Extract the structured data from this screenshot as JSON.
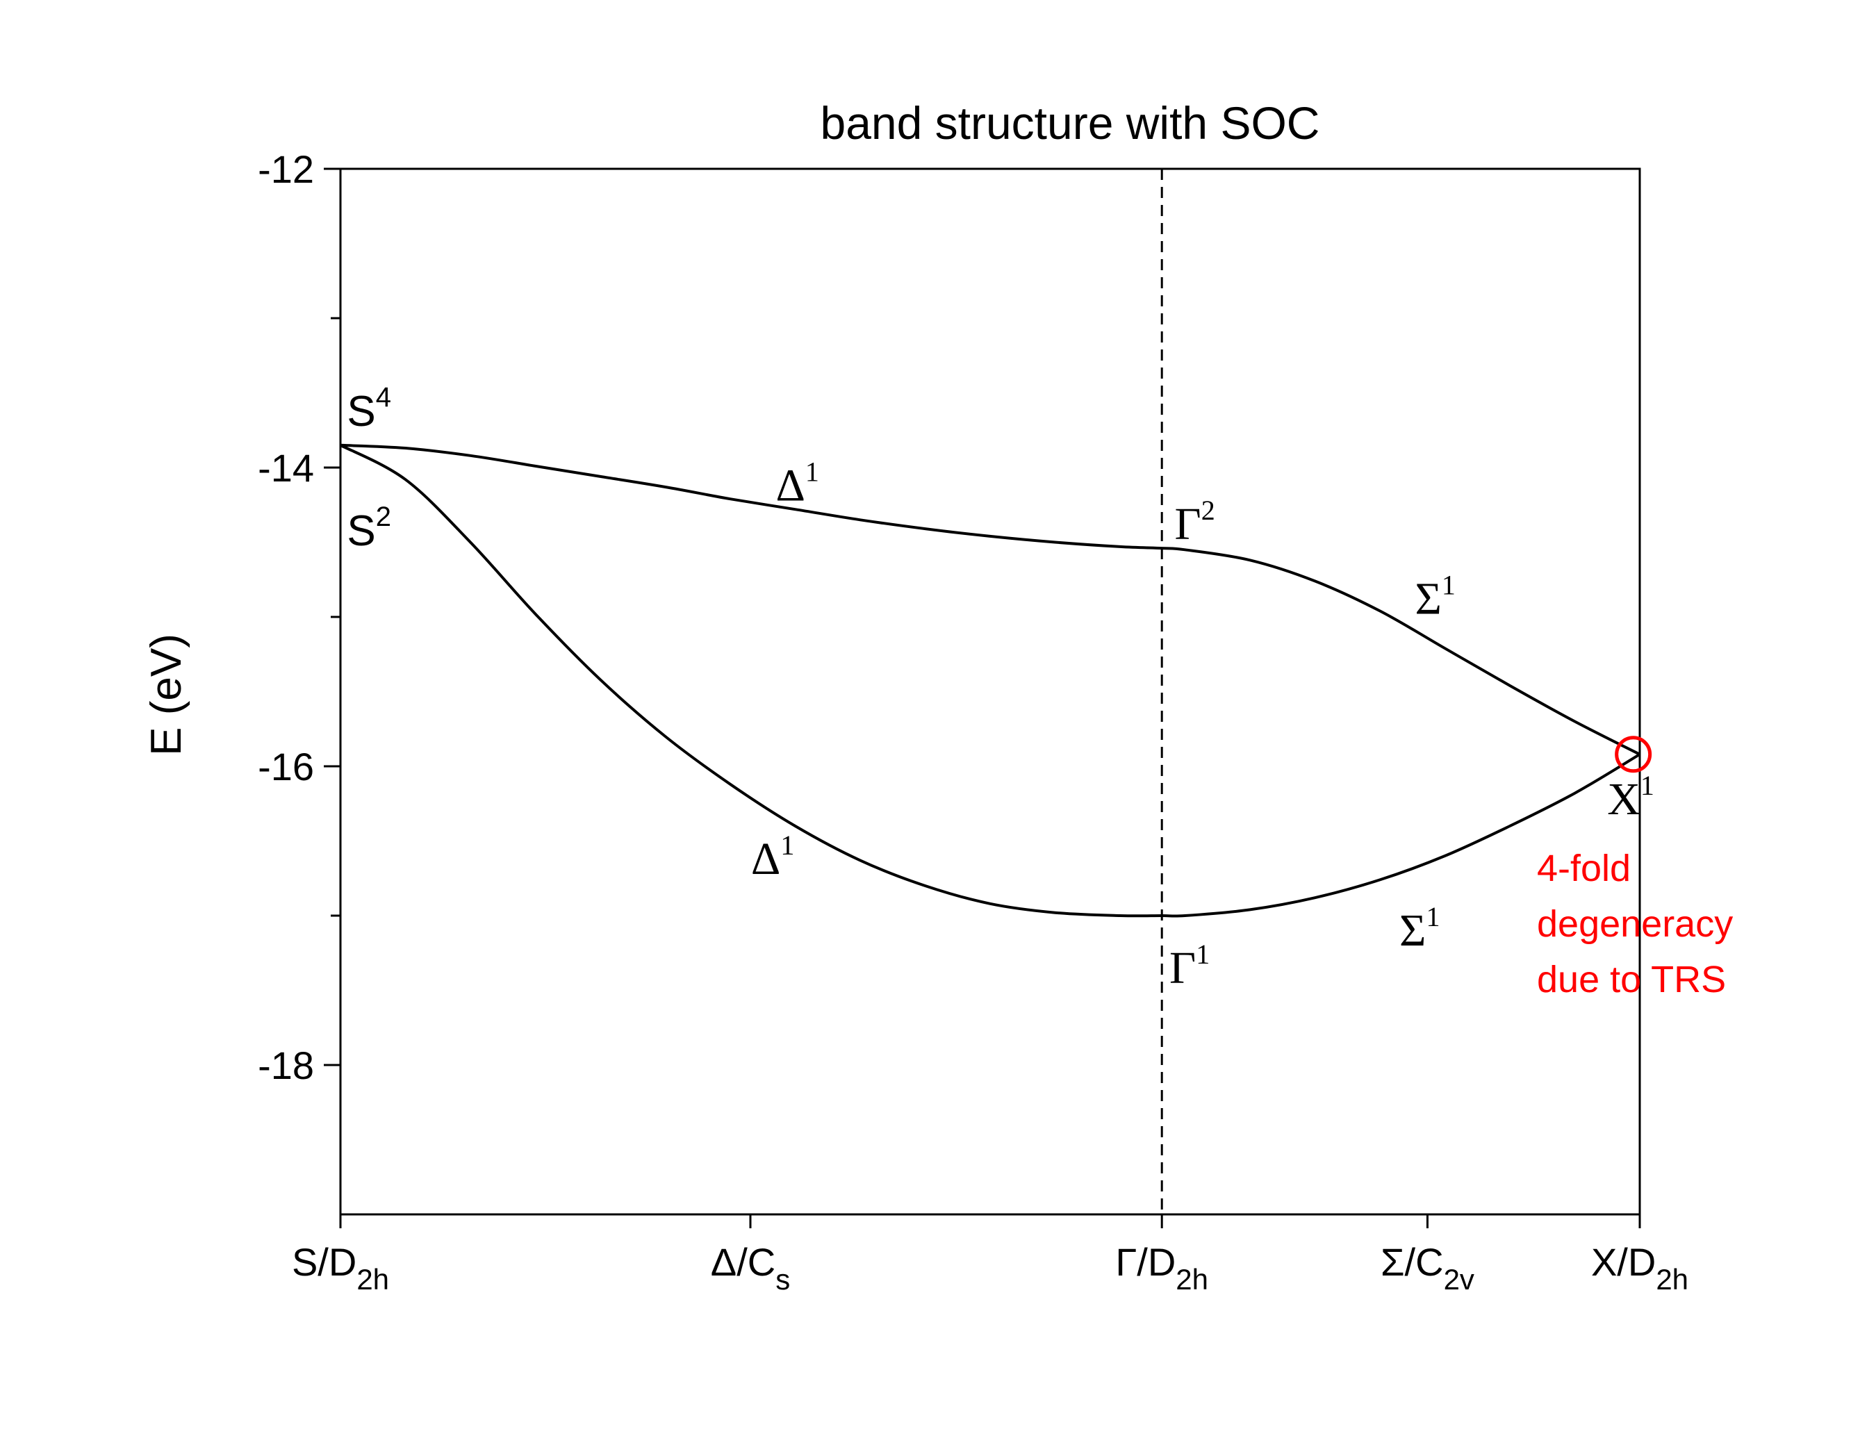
{
  "chart_data": {
    "type": "line",
    "title": "band structure with SOC",
    "ylabel": "E (eV)",
    "xlabel": "",
    "ylim": [
      -19,
      -12
    ],
    "xlim": [
      0,
      1
    ],
    "grid": false,
    "legend": "none",
    "y_ticks": [
      {
        "value": -12,
        "label": "-12"
      },
      {
        "value": -14,
        "label": "-14"
      },
      {
        "value": -16,
        "label": "-16"
      },
      {
        "value": -18,
        "label": "-18"
      }
    ],
    "y_minor_ticks": [
      -13,
      -15,
      -17
    ],
    "x_ticks": [
      {
        "value": 0.0,
        "main": "S/D",
        "sub": "2h",
        "symbol": false
      },
      {
        "value": 0.3155,
        "main": "Δ/C",
        "sub": "s",
        "symbol": true
      },
      {
        "value": 0.6322,
        "main": "Γ/D",
        "sub": "2h",
        "symbol": true
      },
      {
        "value": 0.8366,
        "main": "Σ/C",
        "sub": "2v",
        "symbol": true
      },
      {
        "value": 1.0,
        "main": "X/D",
        "sub": "2h",
        "symbol": false
      }
    ],
    "vline": {
      "x": 0.6322,
      "style": "dashed"
    },
    "series": [
      {
        "color": "#000000",
        "x": [
          0.0,
          0.05,
          0.1,
          0.15,
          0.2,
          0.25,
          0.3,
          0.35,
          0.4,
          0.45,
          0.5,
          0.55,
          0.6,
          0.6322,
          0.65,
          0.7,
          0.75,
          0.8,
          0.85,
          0.9,
          0.95,
          1.0
        ],
        "y": [
          -13.85,
          -13.87,
          -13.92,
          -13.99,
          -14.06,
          -14.13,
          -14.21,
          -14.28,
          -14.35,
          -14.41,
          -14.46,
          -14.5,
          -14.53,
          -14.54,
          -14.55,
          -14.62,
          -14.76,
          -14.96,
          -15.21,
          -15.46,
          -15.7,
          -15.92
        ]
      },
      {
        "color": "#000000",
        "x": [
          0.0,
          0.05,
          0.1,
          0.15,
          0.2,
          0.25,
          0.3,
          0.35,
          0.4,
          0.45,
          0.5,
          0.55,
          0.6,
          0.6322,
          0.65,
          0.7,
          0.75,
          0.8,
          0.85,
          0.9,
          0.95,
          1.0
        ],
        "y": [
          -13.85,
          -14.08,
          -14.5,
          -14.98,
          -15.42,
          -15.8,
          -16.12,
          -16.4,
          -16.63,
          -16.8,
          -16.92,
          -16.98,
          -17.0,
          -17.0,
          -17.0,
          -16.96,
          -16.88,
          -16.76,
          -16.6,
          -16.4,
          -16.18,
          -15.92
        ]
      }
    ],
    "annotations": [
      {
        "main": "S",
        "sup": "4",
        "x": 0.005,
        "y": -13.72,
        "font": "sans"
      },
      {
        "main": "S",
        "sup": "2",
        "x": 0.005,
        "y": -14.52,
        "font": "sans"
      },
      {
        "main": "Δ",
        "sup": "1",
        "x": 0.335,
        "y": -14.22,
        "font": "serif"
      },
      {
        "main": "Γ",
        "sup": "2",
        "x": 0.642,
        "y": -14.48,
        "font": "serif"
      },
      {
        "main": "Σ",
        "sup": "1",
        "x": 0.827,
        "y": -14.98,
        "font": "serif"
      },
      {
        "main": "Δ",
        "sup": "1",
        "x": 0.316,
        "y": -16.72,
        "font": "serif"
      },
      {
        "main": "Σ",
        "sup": "1",
        "x": 0.815,
        "y": -17.2,
        "font": "serif"
      },
      {
        "main": "Γ",
        "sup": "1",
        "x": 0.638,
        "y": -17.45,
        "font": "serif"
      },
      {
        "main": "X",
        "sup": "1",
        "x": 0.975,
        "y": -16.32,
        "font": "serif"
      }
    ],
    "highlight": {
      "x": 0.995,
      "y": -15.92,
      "color": "#ff0000"
    },
    "note": {
      "lines": [
        "4-fold",
        "degeneracy",
        "due to TRS"
      ],
      "color": "#ff0000"
    }
  }
}
